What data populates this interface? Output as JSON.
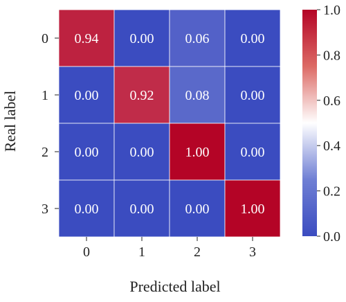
{
  "chart_data": {
    "type": "heatmap",
    "title": "",
    "xlabel": "Predicted label",
    "ylabel": "Real label",
    "x_categories": [
      "0",
      "1",
      "2",
      "3"
    ],
    "y_categories": [
      "0",
      "1",
      "2",
      "3"
    ],
    "values": [
      [
        0.94,
        0.0,
        0.06,
        0.0
      ],
      [
        0.0,
        0.92,
        0.08,
        0.0
      ],
      [
        0.0,
        0.0,
        1.0,
        0.0
      ],
      [
        0.0,
        0.0,
        0.0,
        1.0
      ]
    ],
    "cell_labels": [
      [
        "0.94",
        "0.00",
        "0.06",
        "0.00"
      ],
      [
        "0.00",
        "0.92",
        "0.08",
        "0.00"
      ],
      [
        "0.00",
        "0.00",
        "1.00",
        "0.00"
      ],
      [
        "0.00",
        "0.00",
        "0.00",
        "1.00"
      ]
    ],
    "colorbar": {
      "range": [
        0.0,
        1.0
      ],
      "ticks": [
        0.0,
        0.2,
        0.4,
        0.6,
        0.8,
        1.0
      ],
      "tick_labels": [
        "0.0",
        "0.2",
        "0.4",
        "0.6",
        "0.8",
        "1.0"
      ],
      "colormap": [
        "#3b4cc0",
        "#ffffff",
        "#b40426"
      ]
    },
    "grid": true,
    "legend": "none"
  }
}
